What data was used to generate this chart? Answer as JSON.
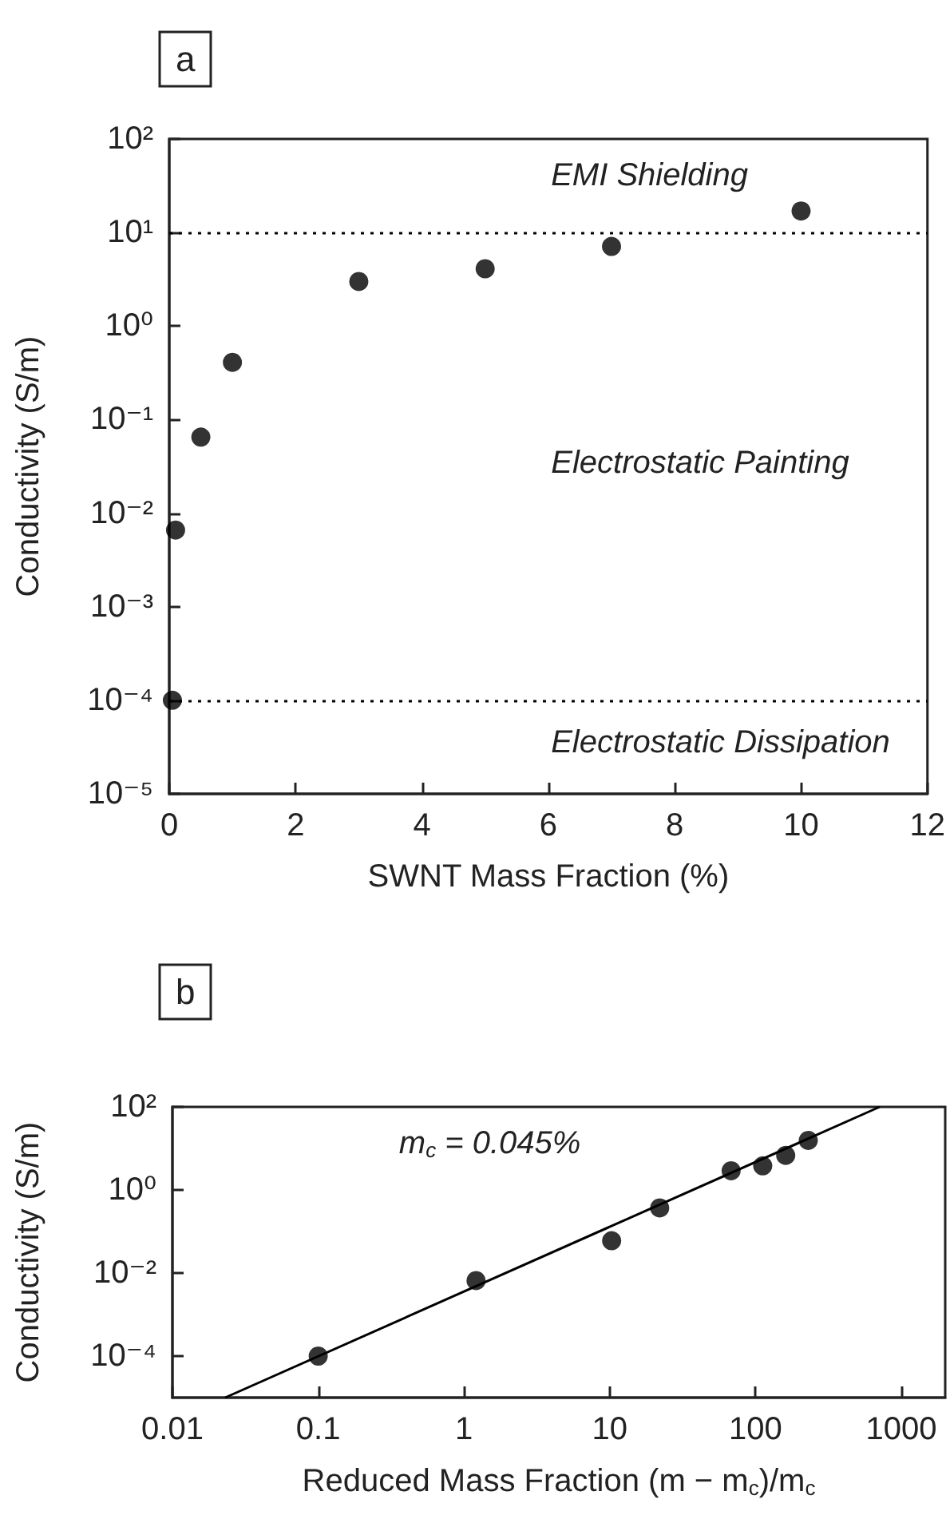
{
  "chart_data": [
    {
      "type": "scatter",
      "title": "a",
      "xlabel": "SWNT Mass Fraction (%)",
      "ylabel": "Conductivity (S/m)",
      "log": "y",
      "grid": false,
      "marker": "circle",
      "x": [
        0.05,
        0.1,
        0.5,
        1,
        3,
        5,
        7,
        10
      ],
      "series": [
        {
          "color": "#000000",
          "values": [
            0.0001,
            0.0066,
            0.065,
            0.41,
            3.0,
            4.1,
            7.1,
            17
          ]
        }
      ],
      "xlim": [
        0,
        12
      ],
      "xticks": [
        0,
        2,
        4,
        6,
        8,
        10,
        12
      ],
      "ylim": [
        1e-05,
        100
      ],
      "yticks": [
        {
          "value": 1e-05,
          "label": "10⁻⁵"
        },
        {
          "value": 0.0001,
          "label": "10⁻⁴"
        },
        {
          "value": 0.001,
          "label": "10⁻³"
        },
        {
          "value": 0.01,
          "label": "10⁻²"
        },
        {
          "value": 0.1,
          "label": "10⁻¹"
        },
        {
          "value": 1,
          "label": "10⁰"
        },
        {
          "value": 10,
          "label": "10¹"
        },
        {
          "value": 100,
          "label": "10²"
        }
      ],
      "ref_lines": [
        {
          "axis": "y",
          "value": 10,
          "color": "#000000",
          "line_style": "dotted"
        },
        {
          "axis": "y",
          "value": 0.0001,
          "color": "#000000",
          "line_style": "dotted"
        }
      ],
      "annotations": [
        "EMI Shielding",
        "Electrostatic Painting",
        "Electrostatic Dissipation"
      ]
    },
    {
      "type": "scatter",
      "title": "b",
      "xlabel": "Reduced Mass Fraction (m − m$_{c}$)/m$_{c}$",
      "ylabel": "Conductivity (S/m)",
      "log": "xy",
      "grid": false,
      "marker": "circle",
      "series": [
        {
          "color": "#000000",
          "x": [
            0.1,
            1.21,
            10.3,
            22,
            68,
            112,
            161,
            230
          ],
          "values": [
            0.0001,
            0.0066,
            0.06,
            0.37,
            2.9,
            3.8,
            6.8,
            15.6
          ]
        },
        {
          "type": "line",
          "color": "#000000",
          "marker": "none",
          "line_style": "solid",
          "x": [
            0.023,
            710
          ],
          "values": [
            1e-05,
            100
          ]
        }
      ],
      "xlim": [
        0.01,
        2000
      ],
      "xticks": [
        0.01,
        0.1,
        1,
        10,
        100,
        1000
      ],
      "ylim": [
        1e-05,
        100
      ],
      "yticks": [
        {
          "value": 0.0001,
          "label": "10⁻⁴"
        },
        {
          "value": 0.01,
          "label": "10⁻²"
        },
        {
          "value": 1,
          "label": "10⁰"
        },
        {
          "value": 100,
          "label": "10²"
        }
      ],
      "annotations": [
        "m$_{c}$ = 0.045%"
      ]
    }
  ]
}
